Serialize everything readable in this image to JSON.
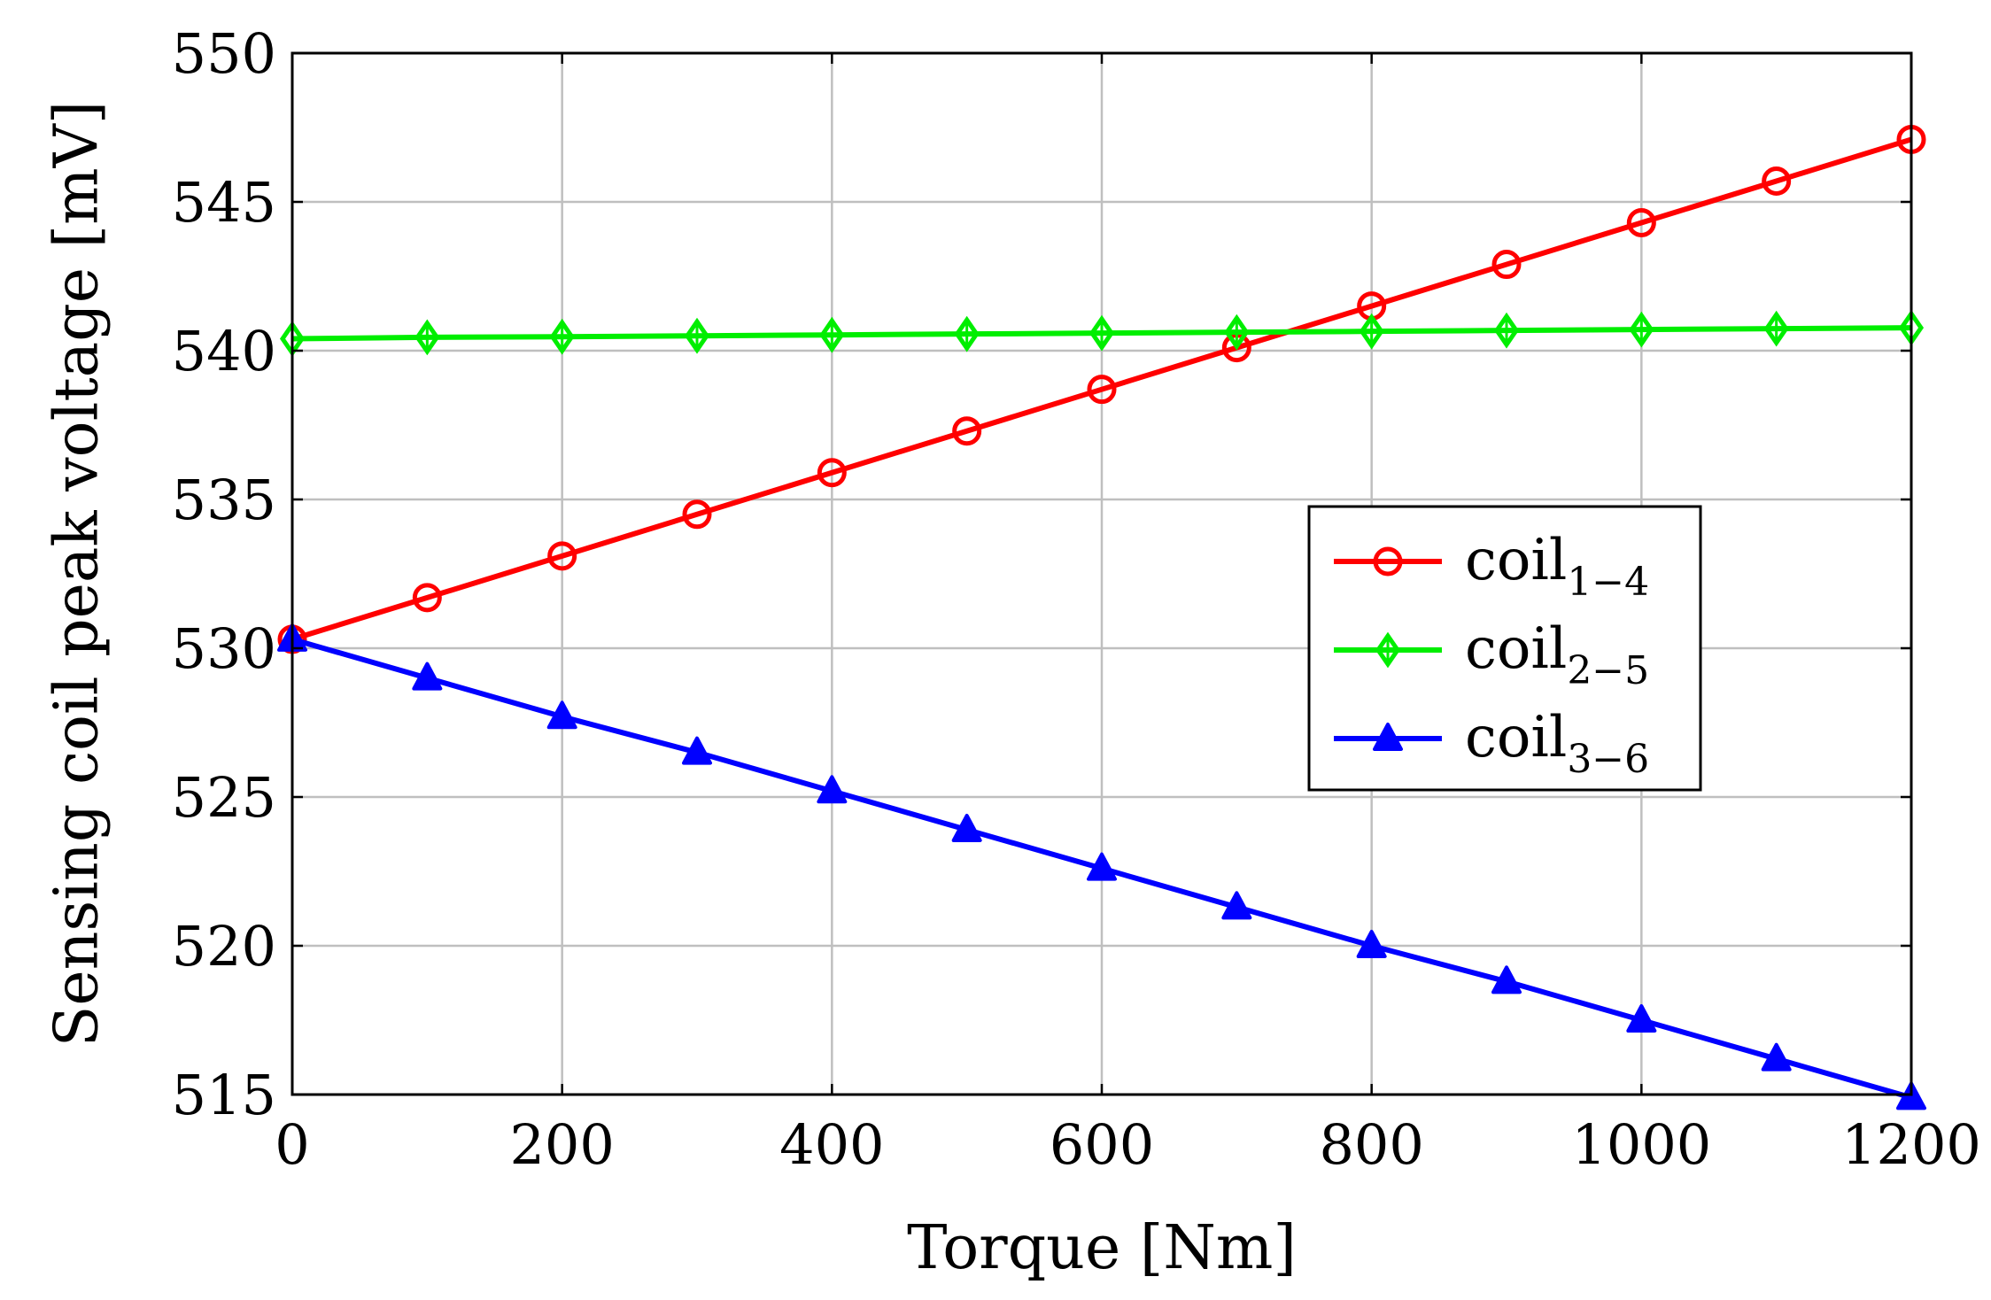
{
  "chart_data": {
    "type": "line",
    "title": "",
    "xlabel": "Torque [Nm]",
    "ylabel": "Sensing coil peak voltage [mV]",
    "xlim": [
      0,
      1200
    ],
    "ylim": [
      515,
      550
    ],
    "xticks": [
      0,
      200,
      400,
      600,
      800,
      1000,
      1200
    ],
    "yticks": [
      515,
      520,
      525,
      530,
      535,
      540,
      545,
      550
    ],
    "xtick_labels": [
      "0",
      "200",
      "400",
      "600",
      "800",
      "1000",
      "1200"
    ],
    "ytick_labels": [
      "515",
      "520",
      "525",
      "530",
      "535",
      "540",
      "545",
      "550"
    ],
    "grid": true,
    "legend_position": "center-right",
    "x": [
      0,
      100,
      200,
      300,
      400,
      500,
      600,
      700,
      800,
      900,
      1000,
      1100,
      1200
    ],
    "series": [
      {
        "name": "coil",
        "subscript": "1−4",
        "color": "#ff0000",
        "marker": "circle",
        "values": [
          530.3,
          531.7,
          533.1,
          534.5,
          535.9,
          537.3,
          538.7,
          540.1,
          541.5,
          542.9,
          544.3,
          545.7,
          547.1
        ]
      },
      {
        "name": "coil",
        "subscript": "2−5",
        "color": "#00ee00",
        "marker": "diamond",
        "values": [
          540.4,
          540.45,
          540.47,
          540.5,
          540.53,
          540.56,
          540.59,
          540.62,
          540.65,
          540.68,
          540.71,
          540.74,
          540.77
        ]
      },
      {
        "name": "coil",
        "subscript": "3−6",
        "color": "#0000ff",
        "marker": "triangle",
        "values": [
          530.3,
          529.0,
          527.7,
          526.5,
          525.2,
          523.9,
          522.6,
          521.3,
          520.0,
          518.8,
          517.5,
          516.2,
          514.9
        ]
      }
    ]
  }
}
